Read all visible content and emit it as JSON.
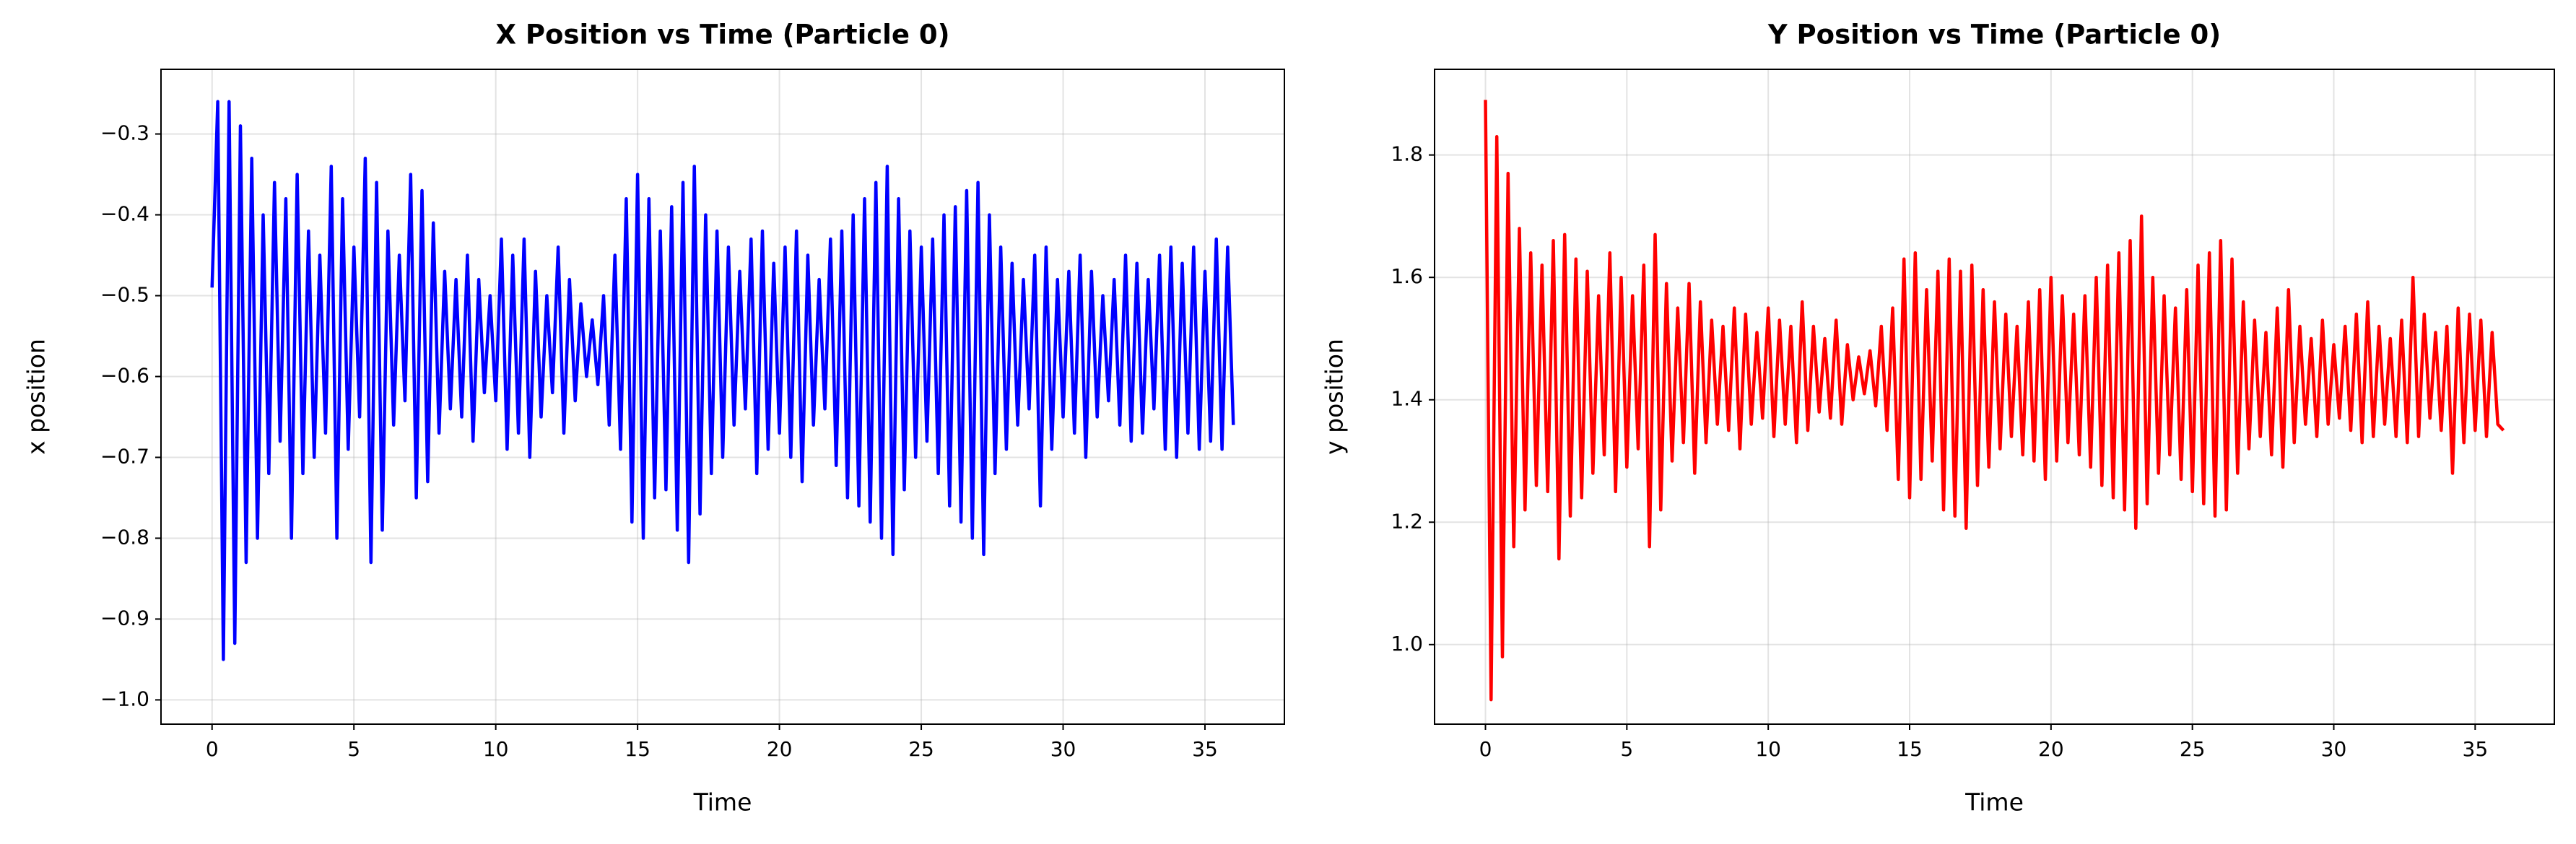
{
  "chart_data": [
    {
      "type": "line",
      "title": "X Position vs Time (Particle 0)",
      "xlabel": "Time",
      "ylabel": "x position",
      "color": "#0000ff",
      "grid": true,
      "xlim": [
        -1.8,
        37.8
      ],
      "xticks": [
        0,
        5,
        10,
        15,
        20,
        25,
        30,
        35
      ],
      "ylim": [
        -1.03,
        -0.22
      ],
      "yticks": [
        {
          "value": -1.0,
          "label": "−1.0"
        },
        {
          "value": -0.9,
          "label": "−0.9"
        },
        {
          "value": -0.8,
          "label": "−0.8"
        },
        {
          "value": -0.7,
          "label": "−0.7"
        },
        {
          "value": -0.6,
          "label": "−0.6"
        },
        {
          "value": -0.5,
          "label": "−0.5"
        },
        {
          "value": -0.4,
          "label": "−0.4"
        },
        {
          "value": -0.3,
          "label": "−0.3"
        }
      ],
      "x": [
        0,
        0.2,
        0.4,
        0.6,
        0.8,
        1,
        1.2,
        1.4,
        1.6,
        1.8,
        2,
        2.2,
        2.4,
        2.6,
        2.8,
        3,
        3.2,
        3.4,
        3.6,
        3.8,
        4,
        4.2,
        4.4,
        4.6,
        4.8,
        5,
        5.2,
        5.4,
        5.6,
        5.8,
        6,
        6.2,
        6.4,
        6.6,
        6.8,
        7,
        7.2,
        7.4,
        7.6,
        7.8,
        8,
        8.2,
        8.4,
        8.6,
        8.8,
        9,
        9.2,
        9.4,
        9.6,
        9.8,
        10,
        10.2,
        10.4,
        10.6,
        10.8,
        11,
        11.2,
        11.4,
        11.6,
        11.8,
        12,
        12.2,
        12.4,
        12.6,
        12.8,
        13,
        13.2,
        13.4,
        13.6,
        13.8,
        14,
        14.2,
        14.4,
        14.6,
        14.8,
        15,
        15.2,
        15.4,
        15.6,
        15.8,
        16,
        16.2,
        16.4,
        16.6,
        16.8,
        17,
        17.2,
        17.4,
        17.6,
        17.8,
        18,
        18.2,
        18.4,
        18.6,
        18.8,
        19,
        19.2,
        19.4,
        19.6,
        19.8,
        20,
        20.2,
        20.4,
        20.6,
        20.8,
        21,
        21.2,
        21.4,
        21.6,
        21.8,
        22,
        22.2,
        22.4,
        22.6,
        22.8,
        23,
        23.2,
        23.4,
        23.6,
        23.8,
        24,
        24.2,
        24.4,
        24.6,
        24.8,
        25,
        25.2,
        25.4,
        25.6,
        25.8,
        26,
        26.2,
        26.4,
        26.6,
        26.8,
        27,
        27.2,
        27.4,
        27.6,
        27.8,
        28,
        28.2,
        28.4,
        28.6,
        28.8,
        29,
        29.2,
        29.4,
        29.6,
        29.8,
        30,
        30.2,
        30.4,
        30.6,
        30.8,
        31,
        31.2,
        31.4,
        31.6,
        31.8,
        32,
        32.2,
        32.4,
        32.6,
        32.8,
        33,
        33.2,
        33.4,
        33.6,
        33.8,
        34,
        34.2,
        34.4,
        34.6,
        34.8,
        35,
        35.2,
        35.4,
        35.6,
        35.8,
        36
      ],
      "values": [
        -0.49,
        -0.26,
        -0.95,
        -0.26,
        -0.93,
        -0.29,
        -0.83,
        -0.33,
        -0.8,
        -0.4,
        -0.72,
        -0.36,
        -0.68,
        -0.38,
        -0.8,
        -0.35,
        -0.72,
        -0.42,
        -0.7,
        -0.45,
        -0.67,
        -0.34,
        -0.8,
        -0.38,
        -0.69,
        -0.44,
        -0.65,
        -0.33,
        -0.83,
        -0.36,
        -0.79,
        -0.42,
        -0.66,
        -0.45,
        -0.63,
        -0.35,
        -0.75,
        -0.37,
        -0.73,
        -0.41,
        -0.67,
        -0.47,
        -0.64,
        -0.48,
        -0.65,
        -0.45,
        -0.68,
        -0.48,
        -0.62,
        -0.5,
        -0.63,
        -0.43,
        -0.69,
        -0.45,
        -0.67,
        -0.43,
        -0.7,
        -0.47,
        -0.65,
        -0.5,
        -0.62,
        -0.44,
        -0.67,
        -0.48,
        -0.63,
        -0.51,
        -0.6,
        -0.53,
        -0.61,
        -0.5,
        -0.66,
        -0.45,
        -0.69,
        -0.38,
        -0.78,
        -0.35,
        -0.8,
        -0.38,
        -0.75,
        -0.42,
        -0.74,
        -0.39,
        -0.79,
        -0.36,
        -0.83,
        -0.34,
        -0.77,
        -0.4,
        -0.72,
        -0.42,
        -0.7,
        -0.44,
        -0.66,
        -0.47,
        -0.64,
        -0.43,
        -0.72,
        -0.42,
        -0.69,
        -0.46,
        -0.67,
        -0.44,
        -0.7,
        -0.42,
        -0.73,
        -0.45,
        -0.66,
        -0.48,
        -0.64,
        -0.43,
        -0.71,
        -0.42,
        -0.75,
        -0.4,
        -0.76,
        -0.38,
        -0.78,
        -0.36,
        -0.8,
        -0.34,
        -0.82,
        -0.38,
        -0.74,
        -0.42,
        -0.7,
        -0.44,
        -0.68,
        -0.43,
        -0.72,
        -0.4,
        -0.76,
        -0.39,
        -0.78,
        -0.37,
        -0.8,
        -0.36,
        -0.82,
        -0.4,
        -0.72,
        -0.44,
        -0.69,
        -0.46,
        -0.66,
        -0.48,
        -0.64,
        -0.45,
        -0.76,
        -0.44,
        -0.69,
        -0.48,
        -0.65,
        -0.47,
        -0.67,
        -0.45,
        -0.7,
        -0.47,
        -0.65,
        -0.5,
        -0.63,
        -0.48,
        -0.66,
        -0.45,
        -0.68,
        -0.46,
        -0.67,
        -0.48,
        -0.64,
        -0.45,
        -0.69,
        -0.44,
        -0.7,
        -0.46,
        -0.67,
        -0.44,
        -0.69,
        -0.47,
        -0.68,
        -0.43,
        -0.69,
        -0.44,
        -0.66
      ]
    },
    {
      "type": "line",
      "title": "Y Position vs Time (Particle 0)",
      "xlabel": "Time",
      "ylabel": "y position",
      "color": "#ff0000",
      "grid": true,
      "xlim": [
        -1.8,
        37.8
      ],
      "xticks": [
        0,
        5,
        10,
        15,
        20,
        25,
        30,
        35
      ],
      "ylim": [
        0.87,
        1.94
      ],
      "yticks": [
        {
          "value": 1.0,
          "label": "1.0"
        },
        1.2,
        1.4,
        1.6,
        1.8
      ],
      "x": [
        0,
        0.2,
        0.4,
        0.6,
        0.8,
        1,
        1.2,
        1.4,
        1.6,
        1.8,
        2,
        2.2,
        2.4,
        2.6,
        2.8,
        3,
        3.2,
        3.4,
        3.6,
        3.8,
        4,
        4.2,
        4.4,
        4.6,
        4.8,
        5,
        5.2,
        5.4,
        5.6,
        5.8,
        6,
        6.2,
        6.4,
        6.6,
        6.8,
        7,
        7.2,
        7.4,
        7.6,
        7.8,
        8,
        8.2,
        8.4,
        8.6,
        8.8,
        9,
        9.2,
        9.4,
        9.6,
        9.8,
        10,
        10.2,
        10.4,
        10.6,
        10.8,
        11,
        11.2,
        11.4,
        11.6,
        11.8,
        12,
        12.2,
        12.4,
        12.6,
        12.8,
        13,
        13.2,
        13.4,
        13.6,
        13.8,
        14,
        14.2,
        14.4,
        14.6,
        14.8,
        15,
        15.2,
        15.4,
        15.6,
        15.8,
        16,
        16.2,
        16.4,
        16.6,
        16.8,
        17,
        17.2,
        17.4,
        17.6,
        17.8,
        18,
        18.2,
        18.4,
        18.6,
        18.8,
        19,
        19.2,
        19.4,
        19.6,
        19.8,
        20,
        20.2,
        20.4,
        20.6,
        20.8,
        21,
        21.2,
        21.4,
        21.6,
        21.8,
        22,
        22.2,
        22.4,
        22.6,
        22.8,
        23,
        23.2,
        23.4,
        23.6,
        23.8,
        24,
        24.2,
        24.4,
        24.6,
        24.8,
        25,
        25.2,
        25.4,
        25.6,
        25.8,
        26,
        26.2,
        26.4,
        26.6,
        26.8,
        27,
        27.2,
        27.4,
        27.6,
        27.8,
        28,
        28.2,
        28.4,
        28.6,
        28.8,
        29,
        29.2,
        29.4,
        29.6,
        29.8,
        30,
        30.2,
        30.4,
        30.6,
        30.8,
        31,
        31.2,
        31.4,
        31.6,
        31.8,
        32,
        32.2,
        32.4,
        32.6,
        32.8,
        33,
        33.2,
        33.4,
        33.6,
        33.8,
        34,
        34.2,
        34.4,
        34.6,
        34.8,
        35,
        35.2,
        35.4,
        35.6,
        35.8,
        36
      ],
      "values": [
        1.89,
        0.91,
        1.83,
        0.98,
        1.77,
        1.16,
        1.68,
        1.22,
        1.64,
        1.26,
        1.62,
        1.25,
        1.66,
        1.14,
        1.67,
        1.21,
        1.63,
        1.24,
        1.61,
        1.28,
        1.57,
        1.31,
        1.64,
        1.25,
        1.6,
        1.29,
        1.57,
        1.32,
        1.62,
        1.16,
        1.67,
        1.22,
        1.59,
        1.3,
        1.55,
        1.33,
        1.59,
        1.28,
        1.56,
        1.33,
        1.53,
        1.36,
        1.52,
        1.35,
        1.55,
        1.32,
        1.54,
        1.36,
        1.51,
        1.37,
        1.55,
        1.34,
        1.53,
        1.36,
        1.52,
        1.33,
        1.56,
        1.35,
        1.52,
        1.38,
        1.5,
        1.37,
        1.53,
        1.36,
        1.49,
        1.4,
        1.47,
        1.41,
        1.48,
        1.39,
        1.52,
        1.35,
        1.55,
        1.27,
        1.63,
        1.24,
        1.64,
        1.27,
        1.58,
        1.3,
        1.61,
        1.22,
        1.63,
        1.21,
        1.61,
        1.19,
        1.62,
        1.26,
        1.58,
        1.29,
        1.56,
        1.32,
        1.54,
        1.34,
        1.52,
        1.31,
        1.56,
        1.3,
        1.58,
        1.27,
        1.6,
        1.3,
        1.57,
        1.33,
        1.54,
        1.31,
        1.57,
        1.29,
        1.6,
        1.26,
        1.62,
        1.24,
        1.64,
        1.22,
        1.66,
        1.19,
        1.7,
        1.23,
        1.6,
        1.28,
        1.57,
        1.31,
        1.55,
        1.27,
        1.58,
        1.25,
        1.62,
        1.23,
        1.64,
        1.21,
        1.66,
        1.22,
        1.63,
        1.28,
        1.56,
        1.32,
        1.53,
        1.34,
        1.51,
        1.31,
        1.55,
        1.29,
        1.58,
        1.33,
        1.52,
        1.36,
        1.5,
        1.34,
        1.53,
        1.36,
        1.49,
        1.37,
        1.52,
        1.35,
        1.54,
        1.33,
        1.56,
        1.34,
        1.52,
        1.36,
        1.5,
        1.34,
        1.53,
        1.33,
        1.6,
        1.34,
        1.54,
        1.37,
        1.51,
        1.35,
        1.52,
        1.28,
        1.55,
        1.33,
        1.54,
        1.35,
        1.53,
        1.34,
        1.51,
        1.36,
        1.35
      ]
    }
  ]
}
